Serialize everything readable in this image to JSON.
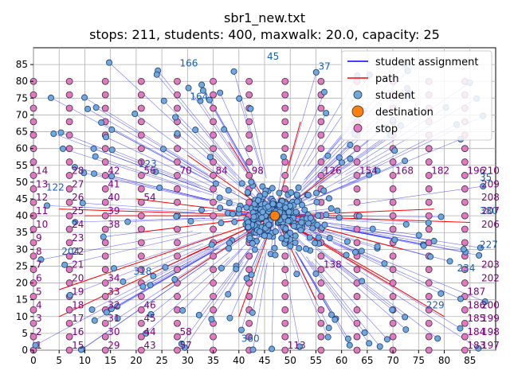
{
  "chart_data": {
    "type": "scatter",
    "title": "sbr1_new.txt",
    "subtitle": "stops: 211, students: 400, maxwalk: 20.0, capacity: 25",
    "xlim": [
      0,
      90
    ],
    "ylim": [
      0,
      90
    ],
    "x_ticks": [
      0,
      5,
      10,
      15,
      20,
      25,
      30,
      35,
      40,
      45,
      50,
      55,
      60,
      65,
      70,
      75,
      80,
      85
    ],
    "y_ticks": [
      0,
      5,
      10,
      15,
      20,
      25,
      30,
      35,
      40,
      45,
      50,
      55,
      60,
      65,
      70,
      75,
      80,
      85
    ],
    "grid": true,
    "legend": {
      "placement": "top-right",
      "entries": [
        {
          "label": "student assignment",
          "kind": "line",
          "color": "#0000ff"
        },
        {
          "label": "path",
          "kind": "line",
          "color": "#ff0000"
        },
        {
          "label": "student",
          "kind": "marker",
          "color": "#6fa8dc"
        },
        {
          "label": "destination",
          "kind": "marker",
          "color": "#ff7f0e"
        },
        {
          "label": "stop",
          "kind": "marker",
          "color": "#e377c2"
        }
      ]
    },
    "depot": [
      47,
      40
    ],
    "stop_columns_x": [
      0,
      7,
      14,
      21,
      28,
      35,
      42,
      49,
      56,
      63,
      70,
      77,
      84
    ],
    "stop_rows_y": [
      0,
      4,
      8,
      12,
      16,
      20,
      24,
      28,
      32,
      36,
      40,
      44,
      48,
      52,
      56,
      60,
      64,
      68,
      72,
      76,
      80
    ],
    "stop_labels": [
      {
        "x": 0,
        "y": 0,
        "label": "1"
      },
      {
        "x": 0,
        "y": 4,
        "label": "2"
      },
      {
        "x": 0,
        "y": 8,
        "label": "3"
      },
      {
        "x": 0,
        "y": 12,
        "label": "4"
      },
      {
        "x": 0,
        "y": 16,
        "label": "5"
      },
      {
        "x": 0,
        "y": 20,
        "label": "6"
      },
      {
        "x": 0,
        "y": 24,
        "label": "7"
      },
      {
        "x": 0,
        "y": 28,
        "label": "8"
      },
      {
        "x": 0,
        "y": 32,
        "label": "9"
      },
      {
        "x": 0,
        "y": 36,
        "label": "10"
      },
      {
        "x": 0,
        "y": 40,
        "label": "11"
      },
      {
        "x": 0,
        "y": 44,
        "label": "12"
      },
      {
        "x": 0,
        "y": 48,
        "label": "13"
      },
      {
        "x": 0,
        "y": 52,
        "label": "14"
      },
      {
        "x": 7,
        "y": 0,
        "label": "15"
      },
      {
        "x": 7,
        "y": 4,
        "label": "16"
      },
      {
        "x": 7,
        "y": 8,
        "label": "17"
      },
      {
        "x": 7,
        "y": 12,
        "label": "18"
      },
      {
        "x": 7,
        "y": 16,
        "label": "19"
      },
      {
        "x": 7,
        "y": 20,
        "label": "20"
      },
      {
        "x": 7,
        "y": 24,
        "label": "21"
      },
      {
        "x": 7,
        "y": 28,
        "label": "22"
      },
      {
        "x": 7,
        "y": 32,
        "label": "23"
      },
      {
        "x": 7,
        "y": 36,
        "label": "24"
      },
      {
        "x": 7,
        "y": 40,
        "label": "25"
      },
      {
        "x": 7,
        "y": 44,
        "label": "26"
      },
      {
        "x": 7,
        "y": 48,
        "label": "27"
      },
      {
        "x": 7,
        "y": 52,
        "label": "28"
      },
      {
        "x": 14,
        "y": 0,
        "label": "29"
      },
      {
        "x": 14,
        "y": 4,
        "label": "30"
      },
      {
        "x": 14,
        "y": 8,
        "label": "31"
      },
      {
        "x": 14,
        "y": 12,
        "label": "32"
      },
      {
        "x": 14,
        "y": 16,
        "label": "33"
      },
      {
        "x": 14,
        "y": 20,
        "label": "34"
      },
      {
        "x": 14,
        "y": 36,
        "label": "38"
      },
      {
        "x": 14,
        "y": 40,
        "label": "39"
      },
      {
        "x": 14,
        "y": 44,
        "label": "40"
      },
      {
        "x": 14,
        "y": 48,
        "label": "41"
      },
      {
        "x": 14,
        "y": 52,
        "label": "42"
      },
      {
        "x": 21,
        "y": 0,
        "label": "43"
      },
      {
        "x": 21,
        "y": 4,
        "label": "44"
      },
      {
        "x": 21,
        "y": 8,
        "label": "45"
      },
      {
        "x": 21,
        "y": 12,
        "label": "46"
      },
      {
        "x": 21,
        "y": 44,
        "label": "54"
      },
      {
        "x": 21,
        "y": 52,
        "label": "56"
      },
      {
        "x": 28,
        "y": 0,
        "label": "57"
      },
      {
        "x": 28,
        "y": 4,
        "label": "58"
      },
      {
        "x": 28,
        "y": 52,
        "label": "70"
      },
      {
        "x": 35,
        "y": 52,
        "label": "84"
      },
      {
        "x": 42,
        "y": 52,
        "label": "98"
      },
      {
        "x": 49,
        "y": 0,
        "label": "113"
      },
      {
        "x": 56,
        "y": 52,
        "label": "126"
      },
      {
        "x": 56,
        "y": 24,
        "label": "138"
      },
      {
        "x": 63,
        "y": 52,
        "label": "154"
      },
      {
        "x": 70,
        "y": 52,
        "label": "168"
      },
      {
        "x": 77,
        "y": 52,
        "label": "182"
      },
      {
        "x": 84,
        "y": 0,
        "label": "183"
      },
      {
        "x": 84,
        "y": 4,
        "label": "184"
      },
      {
        "x": 84,
        "y": 8,
        "label": "185"
      },
      {
        "x": 84,
        "y": 12,
        "label": "186"
      },
      {
        "x": 84,
        "y": 16,
        "label": "187"
      },
      {
        "x": 84,
        "y": 52,
        "label": "196"
      },
      {
        "x": 90,
        "y": 0,
        "label": "197"
      },
      {
        "x": 90,
        "y": 4,
        "label": "198"
      },
      {
        "x": 90,
        "y": 8,
        "label": "199"
      },
      {
        "x": 90,
        "y": 12,
        "label": "200"
      },
      {
        "x": 90,
        "y": 20,
        "label": "202"
      },
      {
        "x": 90,
        "y": 24,
        "label": "203"
      },
      {
        "x": 90,
        "y": 36,
        "label": "206"
      },
      {
        "x": 90,
        "y": 40,
        "label": "207"
      },
      {
        "x": 90,
        "y": 44,
        "label": "208"
      },
      {
        "x": 90,
        "y": 48,
        "label": "209"
      },
      {
        "x": 90,
        "y": 52,
        "label": "210"
      }
    ],
    "student_labels": [
      {
        "x": 28,
        "y": 84,
        "label": "166"
      },
      {
        "x": 45,
        "y": 86,
        "label": "45"
      },
      {
        "x": 55,
        "y": 83,
        "label": "37"
      },
      {
        "x": 30,
        "y": 74,
        "label": "164"
      },
      {
        "x": 2,
        "y": 47,
        "label": "122"
      },
      {
        "x": 20,
        "y": 54,
        "label": "123"
      },
      {
        "x": 40,
        "y": 2,
        "label": "360"
      },
      {
        "x": 88,
        "y": 30,
        "label": "227"
      },
      {
        "x": 88,
        "y": 40,
        "label": "380"
      },
      {
        "x": 88,
        "y": 50,
        "label": "35"
      },
      {
        "x": 76,
        "y": 12,
        "label": "229"
      },
      {
        "x": 82,
        "y": 23,
        "label": "234"
      },
      {
        "x": 5,
        "y": 28,
        "label": "204"
      },
      {
        "x": 19,
        "y": 22,
        "label": "318"
      }
    ]
  }
}
